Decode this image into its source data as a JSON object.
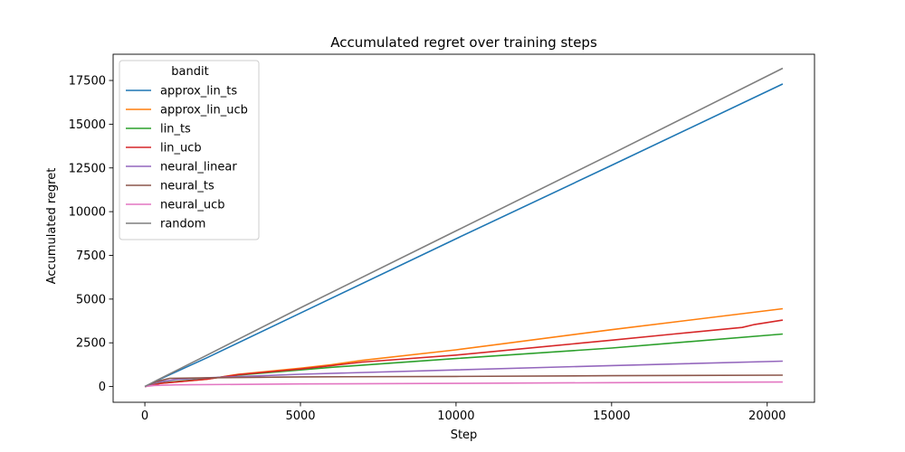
{
  "chart_data": {
    "type": "line",
    "title": "Accumulated regret over training steps",
    "xlabel": "Step",
    "ylabel": "Accumulated regret",
    "xlim": [
      -1020,
      21520
    ],
    "ylim": [
      -900,
      19000
    ],
    "xticks": [
      0,
      5000,
      10000,
      15000,
      20000
    ],
    "xtick_labels": [
      "0",
      "5000",
      "10000",
      "15000",
      "20000"
    ],
    "yticks": [
      0,
      2500,
      5000,
      7500,
      10000,
      12500,
      15000,
      17500
    ],
    "ytick_labels": [
      "0",
      "2500",
      "5000",
      "7500",
      "10000",
      "12500",
      "15000",
      "17500"
    ],
    "grid": false,
    "legend": {
      "title": "bandit",
      "placement": "top-left"
    },
    "series": [
      {
        "name": "approx_lin_ts",
        "color": "#1f77b4",
        "points": [
          [
            0,
            0
          ],
          [
            400,
            350
          ],
          [
            2000,
            1650
          ],
          [
            5000,
            4200
          ],
          [
            10000,
            8450
          ],
          [
            15000,
            12650
          ],
          [
            20500,
            17300
          ]
        ]
      },
      {
        "name": "approx_lin_ucb",
        "color": "#ff7f0e",
        "points": [
          [
            0,
            0
          ],
          [
            500,
            180
          ],
          [
            2000,
            420
          ],
          [
            3000,
            700
          ],
          [
            5000,
            1050
          ],
          [
            6000,
            1250
          ],
          [
            7000,
            1500
          ],
          [
            10000,
            2100
          ],
          [
            15000,
            3250
          ],
          [
            20500,
            4450
          ]
        ]
      },
      {
        "name": "lin_ts",
        "color": "#2ca02c",
        "points": [
          [
            0,
            0
          ],
          [
            500,
            200
          ],
          [
            2000,
            450
          ],
          [
            3000,
            650
          ],
          [
            5000,
            950
          ],
          [
            6000,
            1100
          ],
          [
            10000,
            1600
          ],
          [
            15000,
            2200
          ],
          [
            20500,
            3000
          ]
        ]
      },
      {
        "name": "lin_ucb",
        "color": "#d62728",
        "points": [
          [
            0,
            0
          ],
          [
            500,
            180
          ],
          [
            2000,
            420
          ],
          [
            3000,
            680
          ],
          [
            5000,
            1000
          ],
          [
            6000,
            1200
          ],
          [
            7000,
            1400
          ],
          [
            10000,
            1800
          ],
          [
            15000,
            2650
          ],
          [
            17000,
            3000
          ],
          [
            19200,
            3380
          ],
          [
            19600,
            3550
          ],
          [
            20500,
            3800
          ]
        ]
      },
      {
        "name": "neural_linear",
        "color": "#9467bd",
        "points": [
          [
            0,
            0
          ],
          [
            400,
            250
          ],
          [
            1000,
            400
          ],
          [
            2000,
            500
          ],
          [
            5000,
            700
          ],
          [
            10000,
            950
          ],
          [
            15000,
            1200
          ],
          [
            20500,
            1450
          ]
        ]
      },
      {
        "name": "neural_ts",
        "color": "#8c564b",
        "points": [
          [
            0,
            0
          ],
          [
            400,
            300
          ],
          [
            800,
            470
          ],
          [
            2000,
            500
          ],
          [
            5000,
            550
          ],
          [
            10000,
            580
          ],
          [
            15000,
            620
          ],
          [
            20500,
            650
          ]
        ]
      },
      {
        "name": "neural_ucb",
        "color": "#e377c2",
        "points": [
          [
            0,
            0
          ],
          [
            300,
            60
          ],
          [
            1000,
            100
          ],
          [
            5000,
            150
          ],
          [
            10000,
            180
          ],
          [
            15000,
            220
          ],
          [
            20500,
            260
          ]
        ]
      },
      {
        "name": "random",
        "color": "#7f7f7f",
        "points": [
          [
            0,
            0
          ],
          [
            400,
            370
          ],
          [
            2000,
            1800
          ],
          [
            5000,
            4500
          ],
          [
            10000,
            8900
          ],
          [
            15000,
            13300
          ],
          [
            20500,
            18200
          ]
        ]
      }
    ]
  }
}
